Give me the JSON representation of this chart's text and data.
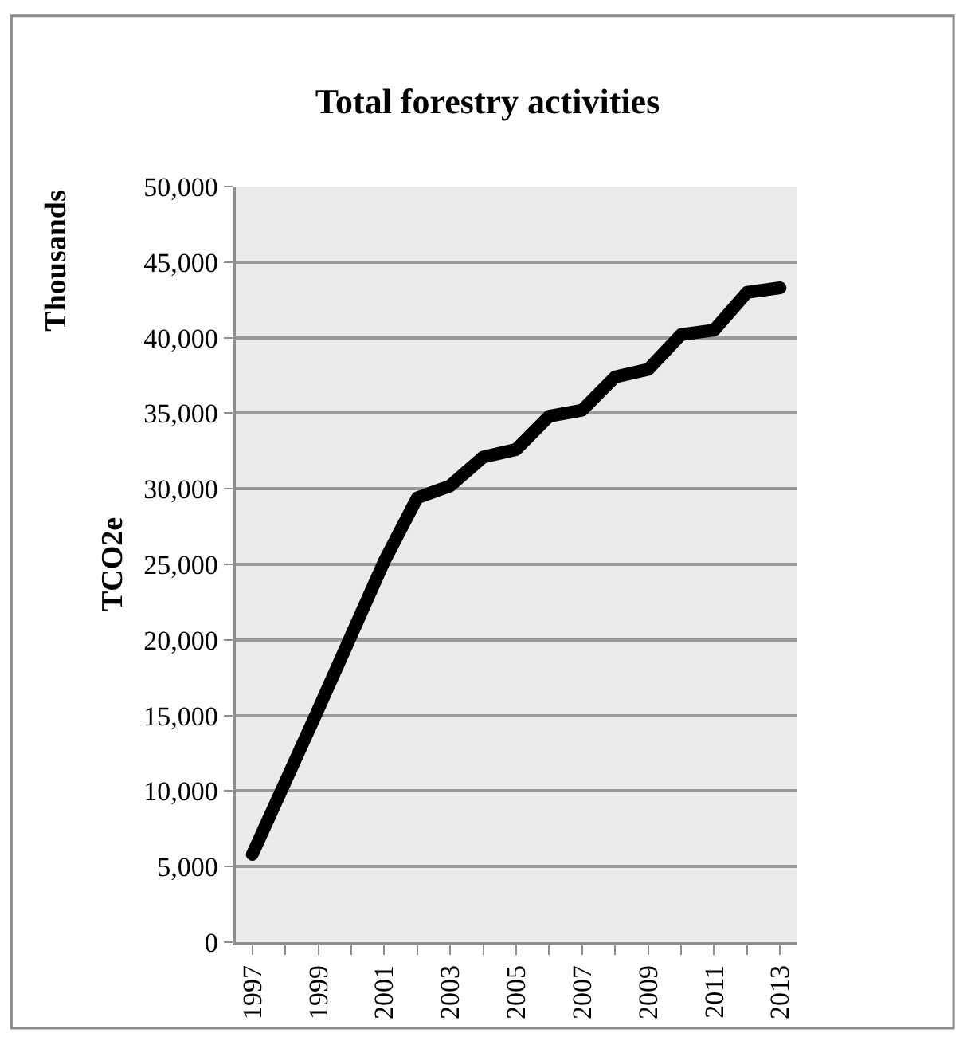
{
  "chart_data": {
    "type": "line",
    "title": "Total forestry activities",
    "ylabel": "TCO2e",
    "annotations": [
      "Thousands"
    ],
    "x": [
      1997,
      1998,
      1999,
      2000,
      2001,
      2002,
      2003,
      2004,
      2005,
      2006,
      2007,
      2008,
      2009,
      2010,
      2011,
      2012,
      2013
    ],
    "series": [
      {
        "color": "#000000",
        "values": [
          5800,
          10600,
          15400,
          20300,
          25200,
          29400,
          30200,
          32100,
          32600,
          34800,
          35200,
          37400,
          37900,
          40200,
          40500,
          43000,
          43300
        ]
      }
    ],
    "xlim": [
      1996.5,
      2013.5
    ],
    "xticks": [
      1997,
      {
        "value": 1998,
        "label": null
      },
      1999,
      {
        "value": 2000,
        "label": null
      },
      2001,
      {
        "value": 2002,
        "label": null
      },
      2003,
      {
        "value": 2004,
        "label": null
      },
      2005,
      {
        "value": 2006,
        "label": null
      },
      2007,
      {
        "value": 2008,
        "label": null
      },
      2009,
      {
        "value": 2010,
        "label": null
      },
      2011,
      {
        "value": 2012,
        "label": null
      },
      2013
    ],
    "ylim": [
      0,
      50000
    ],
    "yticks": [
      {
        "value": 0,
        "label": "0"
      },
      {
        "value": 5000,
        "label": "5,000"
      },
      {
        "value": 10000,
        "label": "10,000"
      },
      {
        "value": 15000,
        "label": "15,000"
      },
      {
        "value": 20000,
        "label": "20,000"
      },
      {
        "value": 25000,
        "label": "25,000"
      },
      {
        "value": 30000,
        "label": "30,000"
      },
      {
        "value": 35000,
        "label": "35,000"
      },
      {
        "value": 40000,
        "label": "40,000"
      },
      {
        "value": 45000,
        "label": "45,000"
      },
      {
        "value": 50000,
        "label": "50,000"
      }
    ],
    "grid": "y",
    "line_style": "solid"
  }
}
